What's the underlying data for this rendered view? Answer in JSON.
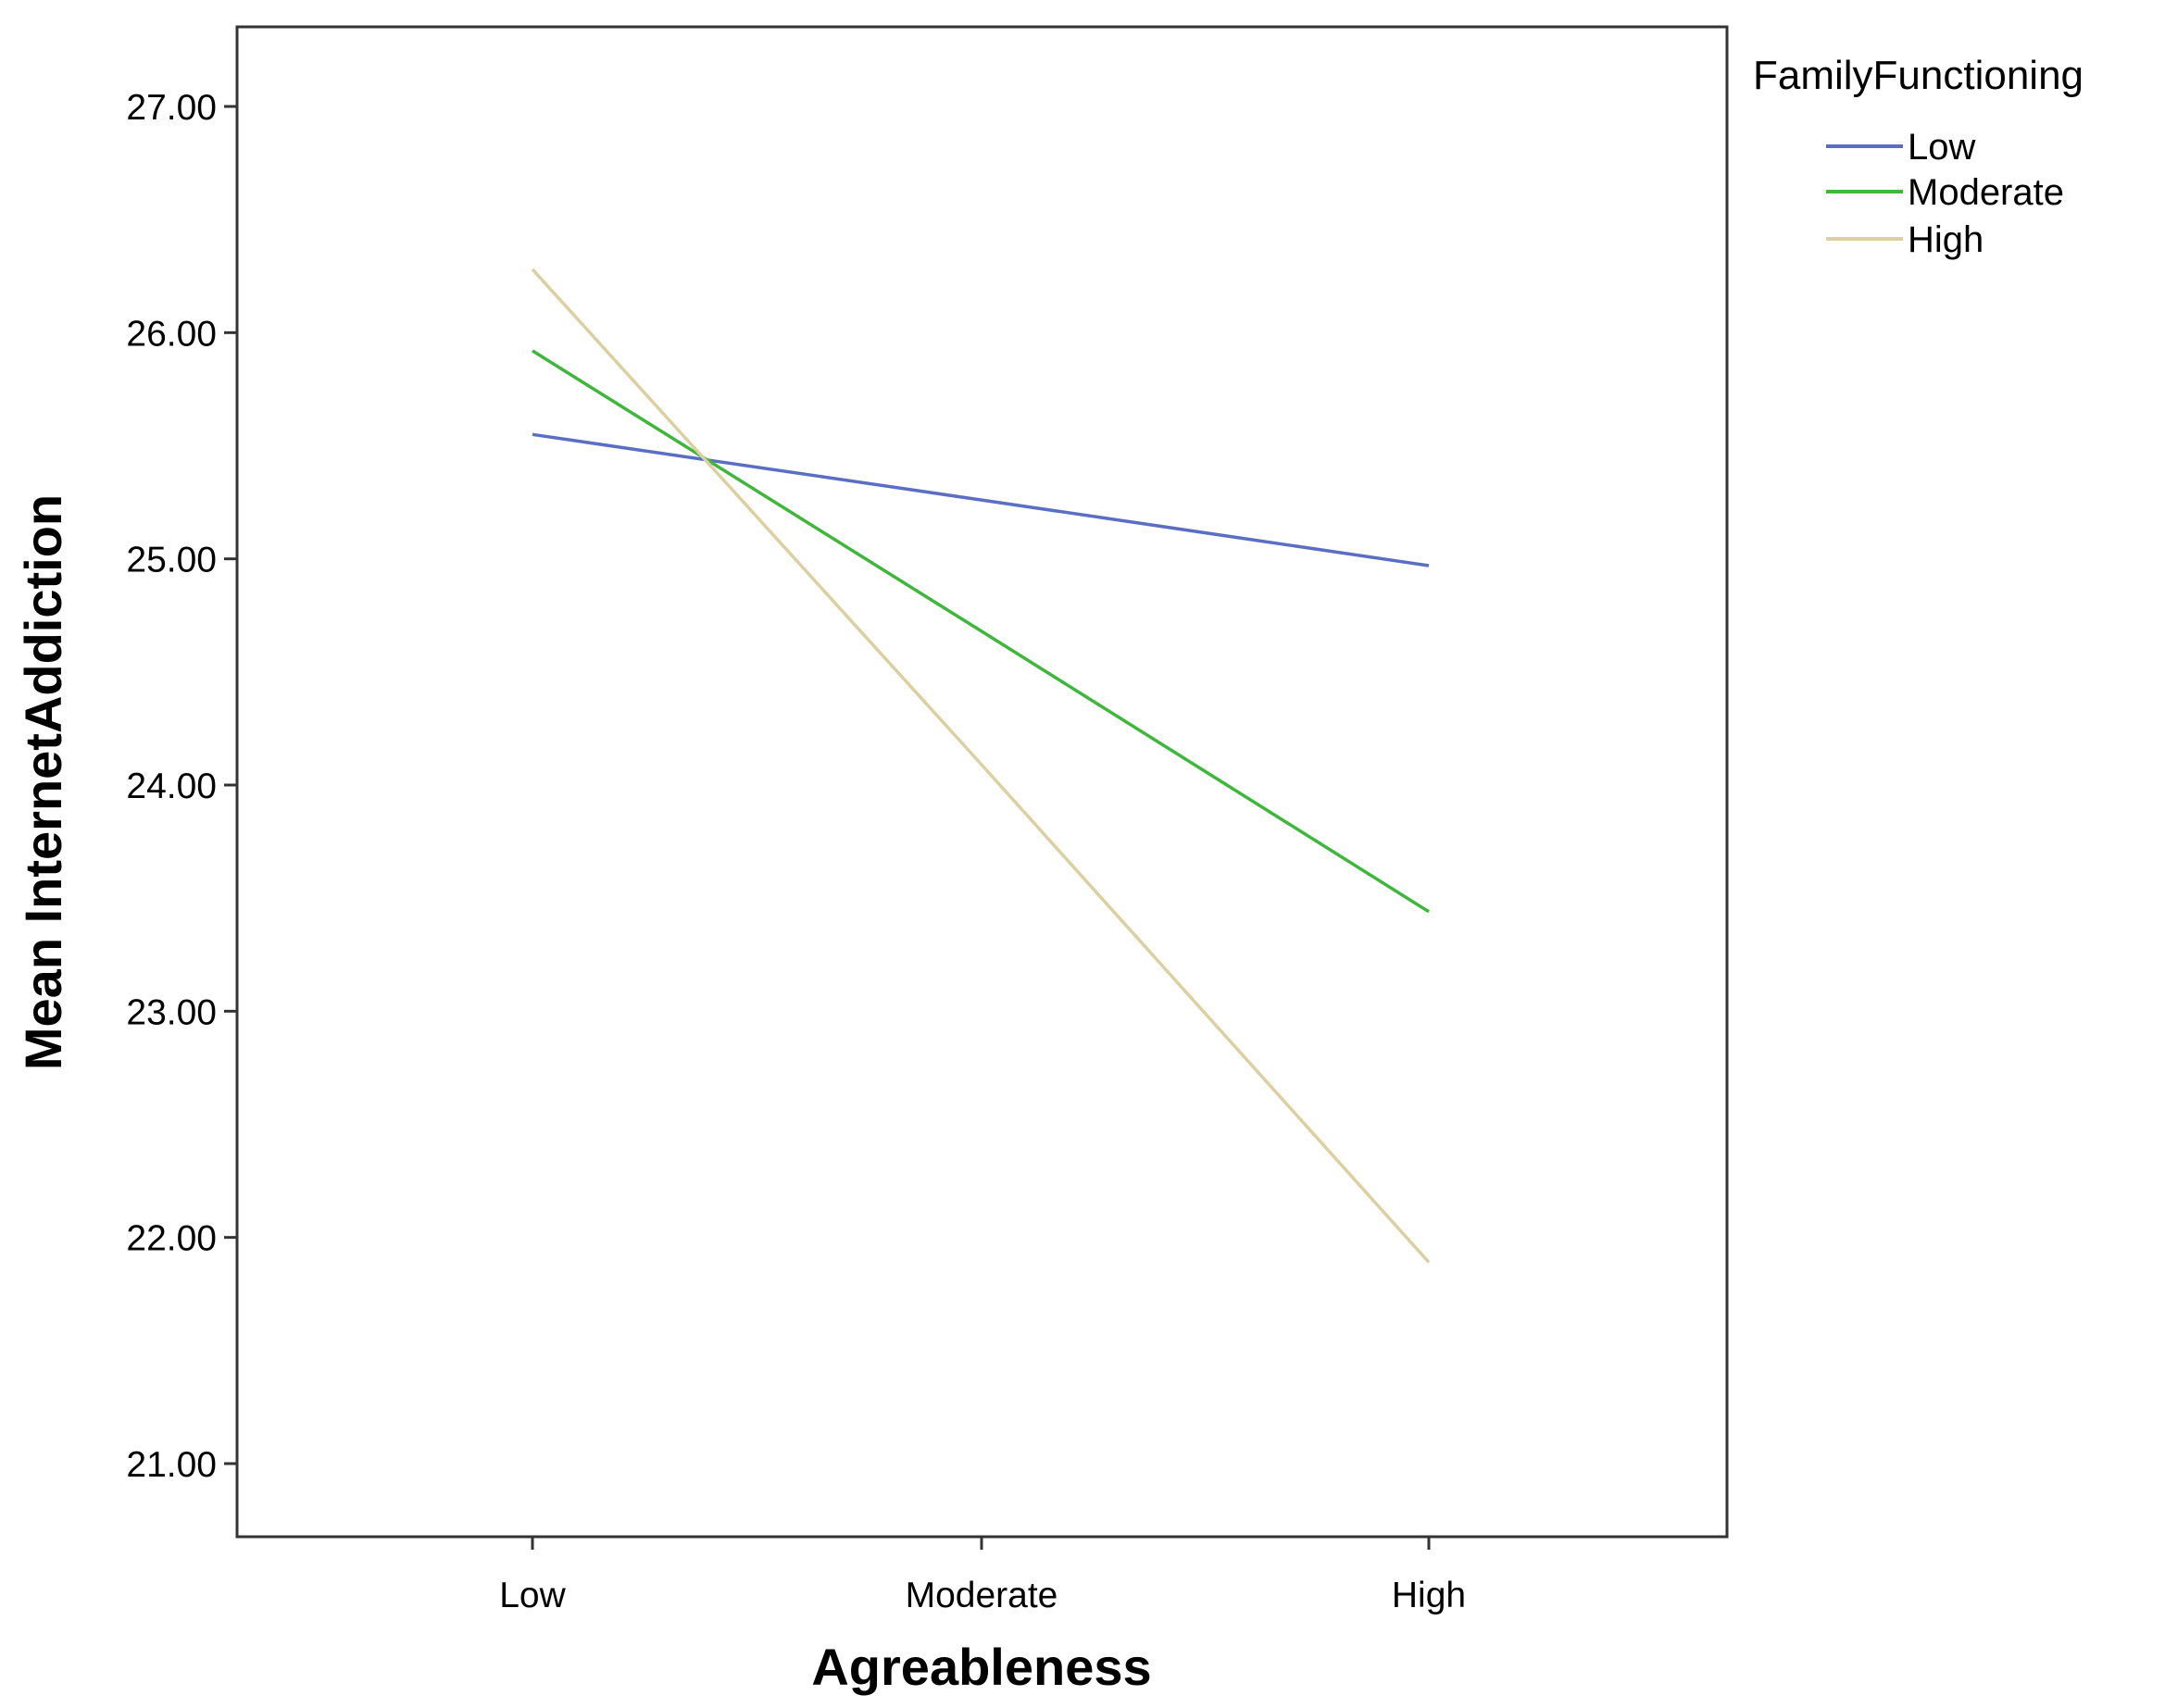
{
  "chart_data": {
    "type": "line",
    "xlabel": "Agreableness",
    "ylabel": "Mean InternetAddiction",
    "categories": [
      "Low",
      "Moderate",
      "High"
    ],
    "ylim": [
      20.67,
      27.35
    ],
    "yticks": [
      21.0,
      22.0,
      23.0,
      24.0,
      25.0,
      26.0,
      27.0
    ],
    "ytick_labels": [
      "21.00",
      "22.00",
      "23.00",
      "24.00",
      "25.00",
      "26.00",
      "27.00"
    ],
    "grid": false,
    "legend": {
      "title": "FamilyFunctioning",
      "placement": "right-outside-top"
    },
    "series": [
      {
        "name": "Low",
        "color": "#5a6fc4",
        "values": [
          25.55,
          25.26,
          24.97
        ]
      },
      {
        "name": "Moderate",
        "color": "#3db83b",
        "values": [
          25.92,
          24.68,
          23.44
        ]
      },
      {
        "name": "High",
        "color": "#dccfa0",
        "values": [
          26.28,
          24.09,
          21.89
        ]
      }
    ]
  }
}
